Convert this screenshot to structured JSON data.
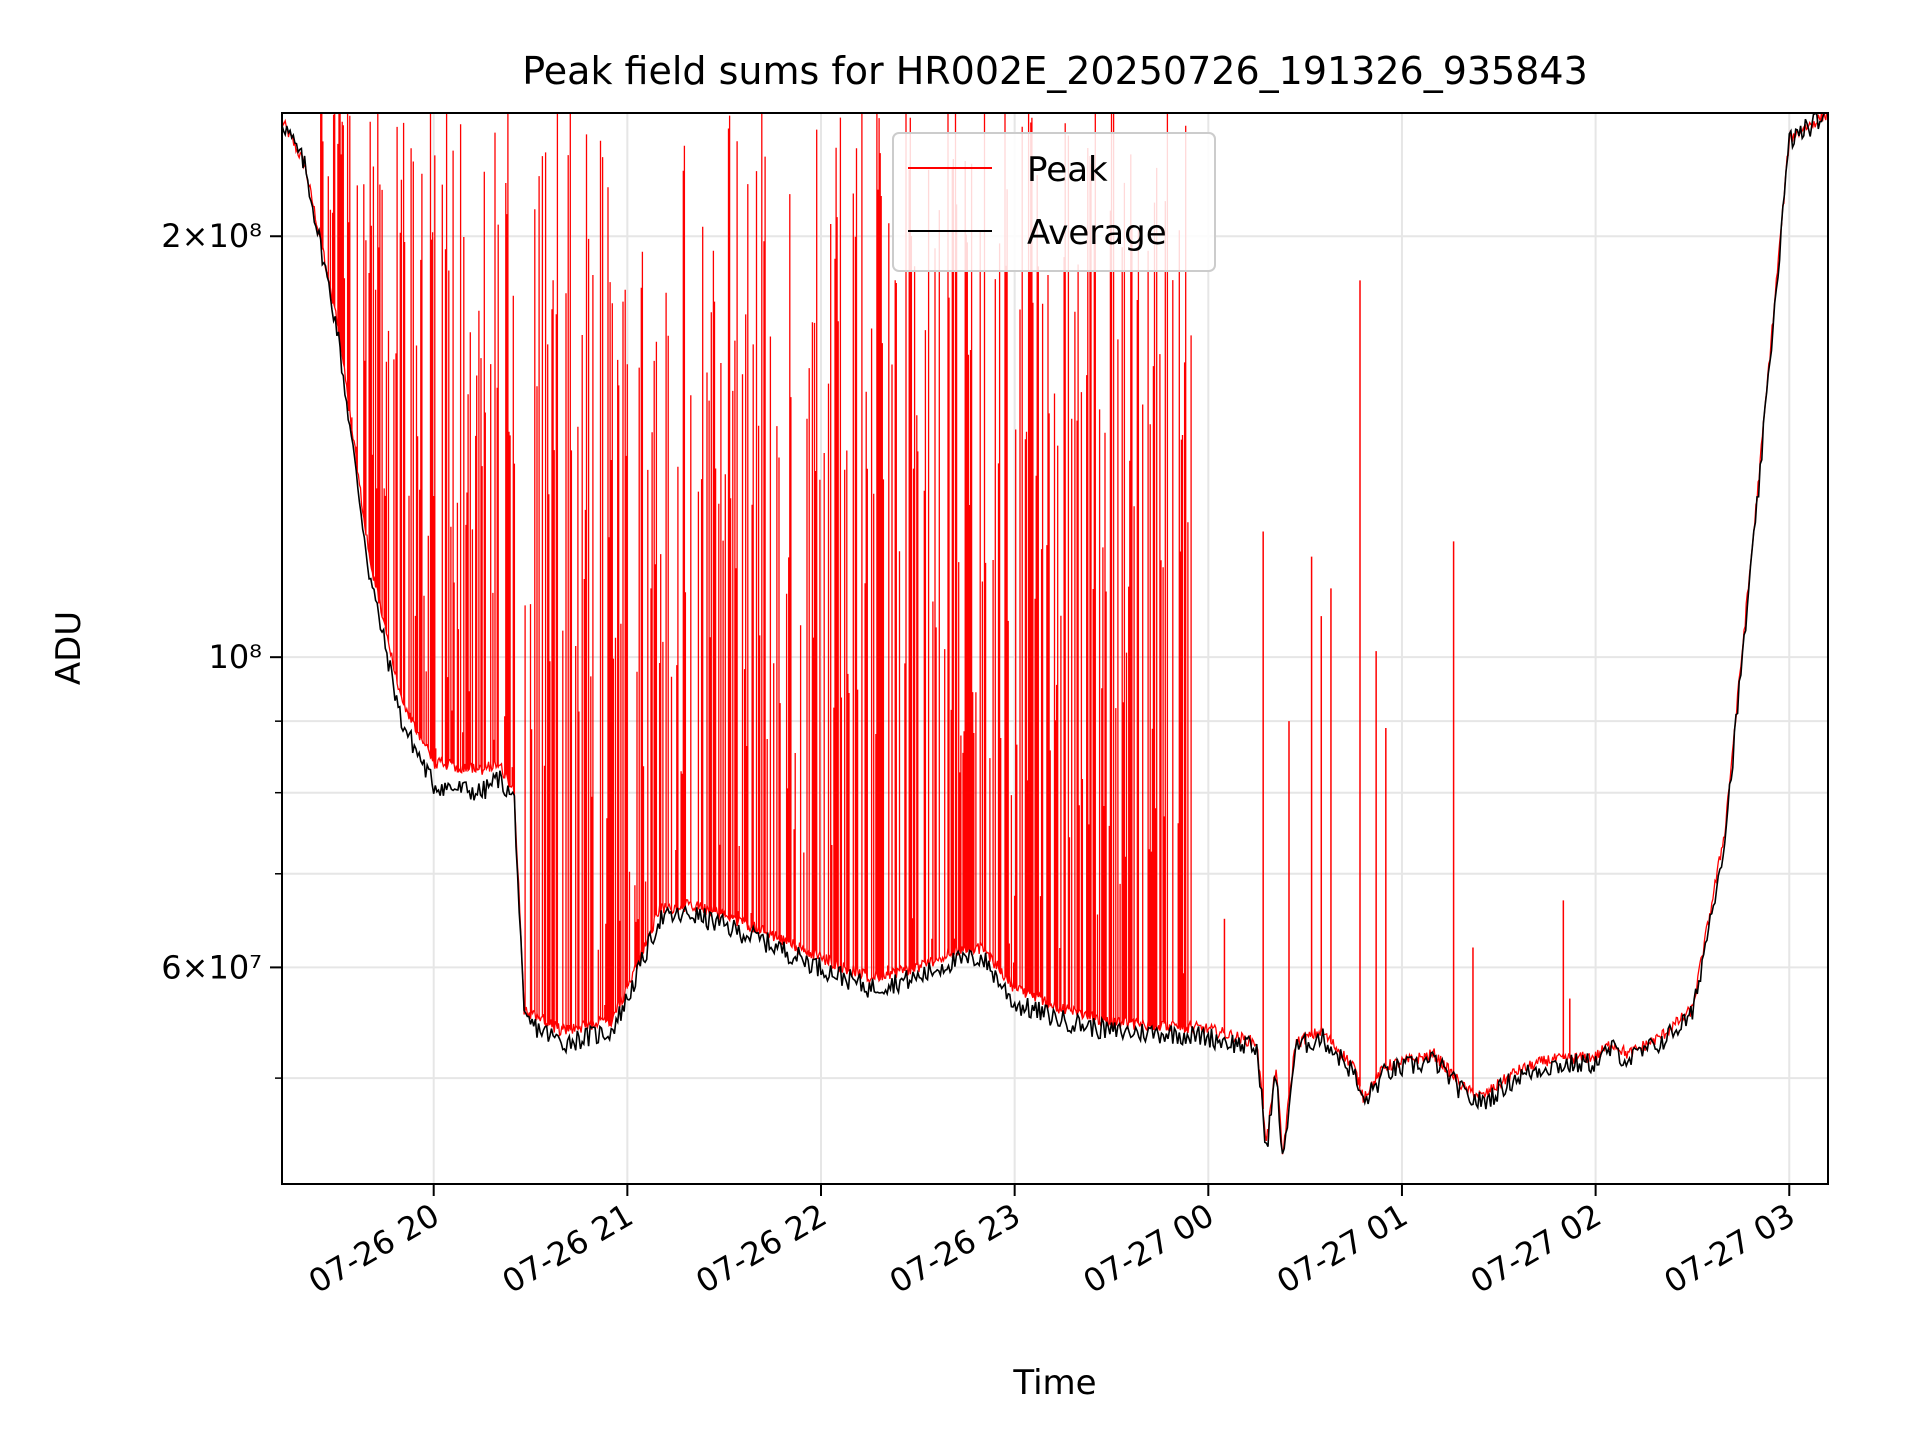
{
  "chart_data": {
    "type": "line",
    "title": "Peak field sums for HR002E_20250726_191326_935843",
    "xlabel": "Time",
    "ylabel": "ADU",
    "yscale": "log",
    "xlim": [
      "2025-07-26 19:13",
      "2025-07-27 03:12"
    ],
    "ylim": [
      42000000,
      245000000
    ],
    "grid": true,
    "legend_position": "top-center",
    "x_ticks": [
      {
        "t": "2025-07-26 20:00",
        "label": "07-26 20"
      },
      {
        "t": "2025-07-26 21:00",
        "label": "07-26 21"
      },
      {
        "t": "2025-07-26 22:00",
        "label": "07-26 22"
      },
      {
        "t": "2025-07-26 23:00",
        "label": "07-26 23"
      },
      {
        "t": "2025-07-27 00:00",
        "label": "07-27 00"
      },
      {
        "t": "2025-07-27 01:00",
        "label": "07-27 01"
      },
      {
        "t": "2025-07-27 02:00",
        "label": "07-27 02"
      },
      {
        "t": "2025-07-27 03:00",
        "label": "07-27 03"
      }
    ],
    "y_ticks_major": [
      {
        "v": 60000000,
        "label": "6×10⁷"
      },
      {
        "v": 100000000,
        "label": "10⁸"
      },
      {
        "v": 200000000,
        "label": "2×10⁸"
      }
    ],
    "y_ticks_minor": [
      50000000,
      70000000,
      80000000,
      90000000
    ],
    "series": [
      {
        "name": "Peak",
        "color": "#ff0000",
        "baseline": [
          [
            "2025-07-26 19:13",
            242000000
          ],
          [
            "2025-07-26 19:20",
            225000000
          ],
          [
            "2025-07-26 19:30",
            175000000
          ],
          [
            "2025-07-26 19:40",
            118000000
          ],
          [
            "2025-07-26 19:50",
            93000000
          ],
          [
            "2025-07-26 20:00",
            84000000
          ],
          [
            "2025-07-26 20:15",
            83000000
          ],
          [
            "2025-07-26 20:20",
            84000000
          ],
          [
            "2025-07-26 20:25",
            80000000
          ],
          [
            "2025-07-26 20:28",
            56000000
          ],
          [
            "2025-07-26 20:40",
            54000000
          ],
          [
            "2025-07-26 20:55",
            55000000
          ],
          [
            "2025-07-26 21:00",
            58000000
          ],
          [
            "2025-07-26 21:10",
            66000000
          ],
          [
            "2025-07-26 21:20",
            66500000
          ],
          [
            "2025-07-26 21:40",
            64000000
          ],
          [
            "2025-07-26 22:00",
            61000000
          ],
          [
            "2025-07-26 22:15",
            59000000
          ],
          [
            "2025-07-26 22:30",
            60000000
          ],
          [
            "2025-07-26 22:40",
            61500000
          ],
          [
            "2025-07-26 22:50",
            62000000
          ],
          [
            "2025-07-26 23:00",
            58000000
          ],
          [
            "2025-07-26 23:15",
            56000000
          ],
          [
            "2025-07-26 23:30",
            54800000
          ],
          [
            "2025-07-26 23:50",
            54500000
          ],
          [
            "2025-07-27 00:00",
            54200000
          ],
          [
            "2025-07-27 00:15",
            53000000
          ],
          [
            "2025-07-27 00:18",
            45000000
          ],
          [
            "2025-07-27 00:21",
            51000000
          ],
          [
            "2025-07-27 00:23",
            44000000
          ],
          [
            "2025-07-27 00:27",
            53000000
          ],
          [
            "2025-07-27 00:35",
            54000000
          ],
          [
            "2025-07-27 00:45",
            51000000
          ],
          [
            "2025-07-27 00:48",
            48500000
          ],
          [
            "2025-07-27 00:55",
            51000000
          ],
          [
            "2025-07-27 01:10",
            52000000
          ],
          [
            "2025-07-27 01:20",
            49000000
          ],
          [
            "2025-07-27 01:25",
            48500000
          ],
          [
            "2025-07-27 01:35",
            50500000
          ],
          [
            "2025-07-27 01:45",
            51500000
          ],
          [
            "2025-07-27 02:00",
            51800000
          ],
          [
            "2025-07-27 02:05",
            53000000
          ],
          [
            "2025-07-27 02:10",
            52000000
          ],
          [
            "2025-07-27 02:20",
            53500000
          ],
          [
            "2025-07-27 02:30",
            56000000
          ],
          [
            "2025-07-27 02:40",
            75000000
          ],
          [
            "2025-07-27 02:50",
            130000000
          ],
          [
            "2025-07-27 03:00",
            235000000
          ],
          [
            "2025-07-27 03:12",
            245000000
          ]
        ],
        "dense_spike_bands": [
          {
            "start": "2025-07-26 19:25",
            "end": "2025-07-26 20:25",
            "max": 245000000,
            "min_level_above_baseline": 1.0
          },
          {
            "start": "2025-07-26 20:28",
            "end": "2025-07-26 23:55",
            "max": 245000000,
            "min_level_above_baseline": 1.0
          }
        ],
        "spikes": [
          [
            "2025-07-27 00:05",
            65000000
          ],
          [
            "2025-07-27 00:17",
            123000000
          ],
          [
            "2025-07-27 00:25",
            90000000
          ],
          [
            "2025-07-27 00:32",
            118000000
          ],
          [
            "2025-07-27 00:35",
            107000000
          ],
          [
            "2025-07-27 00:38",
            112000000
          ],
          [
            "2025-07-27 00:47",
            186000000
          ],
          [
            "2025-07-27 00:52",
            101000000
          ],
          [
            "2025-07-27 00:55",
            89000000
          ],
          [
            "2025-07-27 01:16",
            121000000
          ],
          [
            "2025-07-27 01:22",
            62000000
          ],
          [
            "2025-07-27 01:50",
            67000000
          ],
          [
            "2025-07-27 01:52",
            57000000
          ]
        ]
      },
      {
        "name": "Average",
        "color": "#000000",
        "points": [
          [
            "2025-07-26 19:13",
            242000000
          ],
          [
            "2025-07-26 19:20",
            225000000
          ],
          [
            "2025-07-26 19:30",
            172000000
          ],
          [
            "2025-07-26 19:40",
            115000000
          ],
          [
            "2025-07-26 19:50",
            90000000
          ],
          [
            "2025-07-26 20:00",
            81000000
          ],
          [
            "2025-07-26 20:15",
            80000000
          ],
          [
            "2025-07-26 20:20",
            82000000
          ],
          [
            "2025-07-26 20:25",
            79000000
          ],
          [
            "2025-07-26 20:28",
            55000000
          ],
          [
            "2025-07-26 20:40",
            53000000
          ],
          [
            "2025-07-26 20:55",
            54000000
          ],
          [
            "2025-07-26 21:00",
            57000000
          ],
          [
            "2025-07-26 21:10",
            65000000
          ],
          [
            "2025-07-26 21:20",
            65500000
          ],
          [
            "2025-07-26 21:40",
            63000000
          ],
          [
            "2025-07-26 22:00",
            60000000
          ],
          [
            "2025-07-26 22:15",
            58000000
          ],
          [
            "2025-07-26 22:30",
            59000000
          ],
          [
            "2025-07-26 22:40",
            60500000
          ],
          [
            "2025-07-26 22:50",
            61000000
          ],
          [
            "2025-07-26 23:00",
            56500000
          ],
          [
            "2025-07-26 23:15",
            55000000
          ],
          [
            "2025-07-26 23:30",
            54000000
          ],
          [
            "2025-07-26 23:50",
            53800000
          ],
          [
            "2025-07-27 00:00",
            53500000
          ],
          [
            "2025-07-27 00:15",
            52500000
          ],
          [
            "2025-07-27 00:18",
            44500000
          ],
          [
            "2025-07-27 00:21",
            50500000
          ],
          [
            "2025-07-27 00:23",
            43500000
          ],
          [
            "2025-07-27 00:27",
            52500000
          ],
          [
            "2025-07-27 00:35",
            53500000
          ],
          [
            "2025-07-27 00:45",
            50500000
          ],
          [
            "2025-07-27 00:48",
            48000000
          ],
          [
            "2025-07-27 00:55",
            50500000
          ],
          [
            "2025-07-27 01:10",
            51500000
          ],
          [
            "2025-07-27 01:20",
            48500000
          ],
          [
            "2025-07-27 01:25",
            48000000
          ],
          [
            "2025-07-27 01:35",
            50000000
          ],
          [
            "2025-07-27 01:45",
            51000000
          ],
          [
            "2025-07-27 02:00",
            51300000
          ],
          [
            "2025-07-27 02:05",
            52500000
          ],
          [
            "2025-07-27 02:10",
            51500000
          ],
          [
            "2025-07-27 02:20",
            53000000
          ],
          [
            "2025-07-27 02:30",
            55500000
          ],
          [
            "2025-07-27 02:40",
            74000000
          ],
          [
            "2025-07-27 02:50",
            128000000
          ],
          [
            "2025-07-27 03:00",
            234000000
          ],
          [
            "2025-07-27 03:12",
            245000000
          ]
        ]
      }
    ]
  }
}
